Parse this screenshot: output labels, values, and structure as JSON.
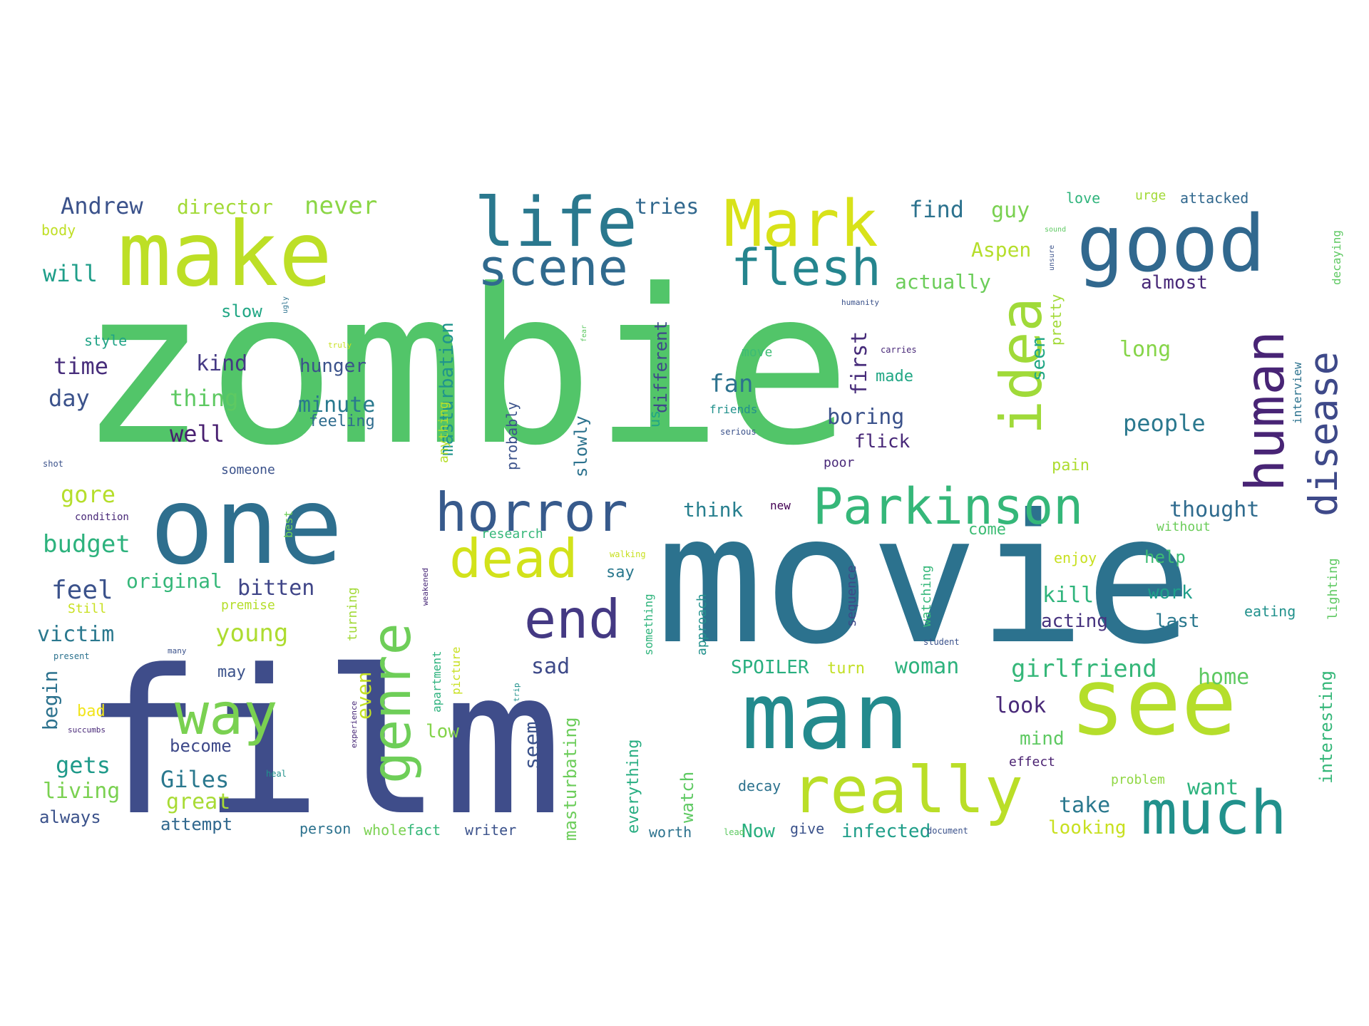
{
  "words": [
    {
      "text": "zombie",
      "color": "#52c569"
    },
    {
      "text": "movie",
      "color": "#2c728e"
    },
    {
      "text": "film",
      "color": "#3f4d8a"
    },
    {
      "text": "one",
      "color": "#2e6f8e"
    },
    {
      "text": "make",
      "color": "#bddf26"
    },
    {
      "text": "man",
      "color": "#238a8d"
    },
    {
      "text": "see",
      "color": "#b5de2b"
    },
    {
      "text": "good",
      "color": "#31688e"
    },
    {
      "text": "life",
      "color": "#2a788e"
    },
    {
      "text": "Mark",
      "color": "#d8e219"
    },
    {
      "text": "really",
      "color": "#bade28"
    },
    {
      "text": "horror",
      "color": "#375a8c"
    },
    {
      "text": "Parkinson",
      "color": "#35b779"
    },
    {
      "text": "scene",
      "color": "#306a8e"
    },
    {
      "text": "flesh",
      "color": "#25858e"
    },
    {
      "text": "much",
      "color": "#21918c"
    },
    {
      "text": "way",
      "color": "#7ad151"
    },
    {
      "text": "dead",
      "color": "#d2e21b"
    },
    {
      "text": "end",
      "color": "#443983"
    },
    {
      "text": "genre",
      "color": "#6ece58"
    },
    {
      "text": "idea",
      "color": "#a0da39"
    },
    {
      "text": "human",
      "color": "#482475"
    },
    {
      "text": "disease",
      "color": "#3e4989"
    },
    {
      "text": "Andrew",
      "color": "#3b528b"
    },
    {
      "text": "director",
      "color": "#a2da37"
    },
    {
      "text": "never",
      "color": "#8bd646"
    },
    {
      "text": "tries",
      "color": "#31688e"
    },
    {
      "text": "find",
      "color": "#2c728e"
    },
    {
      "text": "guy",
      "color": "#7ad151"
    },
    {
      "text": "love",
      "color": "#2fb47c"
    },
    {
      "text": "urge",
      "color": "#a2da37"
    },
    {
      "text": "attacked",
      "color": "#31688e"
    },
    {
      "text": "body",
      "color": "#c0df25"
    },
    {
      "text": "will",
      "color": "#1f9e89"
    },
    {
      "text": "slow",
      "color": "#22a785"
    },
    {
      "text": "style",
      "color": "#20a386"
    },
    {
      "text": "time",
      "color": "#472d7b"
    },
    {
      "text": "kind",
      "color": "#443983"
    },
    {
      "text": "hunger",
      "color": "#3b528b"
    },
    {
      "text": "day",
      "color": "#3b528b"
    },
    {
      "text": "thing",
      "color": "#5ec962"
    },
    {
      "text": "minute",
      "color": "#29798e"
    },
    {
      "text": "feeling",
      "color": "#2f6c8e"
    },
    {
      "text": "well",
      "color": "#481f70"
    },
    {
      "text": "gore",
      "color": "#b5de2b"
    },
    {
      "text": "budget",
      "color": "#2db27d"
    },
    {
      "text": "feel",
      "color": "#3b528b"
    },
    {
      "text": "original",
      "color": "#35b779"
    },
    {
      "text": "bitten",
      "color": "#404688"
    },
    {
      "text": "victim",
      "color": "#2a788e"
    },
    {
      "text": "young",
      "color": "#addc30"
    },
    {
      "text": "begin",
      "color": "#2c728e"
    },
    {
      "text": "may",
      "color": "#3b528b"
    },
    {
      "text": "bad",
      "color": "#f1e51d"
    },
    {
      "text": "become",
      "color": "#3e4989"
    },
    {
      "text": "gets",
      "color": "#1f9a8a"
    },
    {
      "text": "Giles",
      "color": "#2a788e"
    },
    {
      "text": "living",
      "color": "#7ad151"
    },
    {
      "text": "great",
      "color": "#a8db34"
    },
    {
      "text": "always",
      "color": "#3b528b"
    },
    {
      "text": "attempt",
      "color": "#31688e"
    },
    {
      "text": "masturbation",
      "color": "#1f948c"
    },
    {
      "text": "actually",
      "color": "#6ccd5a"
    },
    {
      "text": "Aspen",
      "color": "#b5de2b"
    },
    {
      "text": "almost",
      "color": "#482878"
    },
    {
      "text": "long",
      "color": "#86d549"
    },
    {
      "text": "people",
      "color": "#2a788e"
    },
    {
      "text": "thought",
      "color": "#2f6b8e"
    },
    {
      "text": "fan",
      "color": "#2c728e"
    },
    {
      "text": "boring",
      "color": "#3b528b"
    },
    {
      "text": "flick",
      "color": "#482878"
    },
    {
      "text": "made",
      "color": "#22a785"
    },
    {
      "text": "first",
      "color": "#472c7a"
    },
    {
      "text": "pretty",
      "color": "#a2da37"
    },
    {
      "text": "seen",
      "color": "#21a685"
    },
    {
      "text": "think",
      "color": "#277f8e"
    },
    {
      "text": "SPOILER",
      "color": "#29af7f"
    },
    {
      "text": "woman",
      "color": "#2db27d"
    },
    {
      "text": "girlfriend",
      "color": "#35b779"
    },
    {
      "text": "home",
      "color": "#5ec962"
    },
    {
      "text": "look",
      "color": "#482878"
    },
    {
      "text": "kill",
      "color": "#2fb47c"
    },
    {
      "text": "work",
      "color": "#1f9e89"
    },
    {
      "text": "last",
      "color": "#2a788e"
    },
    {
      "text": "acting",
      "color": "#46327e"
    },
    {
      "text": "help",
      "color": "#3dbc74"
    },
    {
      "text": "take",
      "color": "#2a788e"
    },
    {
      "text": "want",
      "color": "#2db27d"
    },
    {
      "text": "looking",
      "color": "#c8e020"
    },
    {
      "text": "Now",
      "color": "#29af7f"
    },
    {
      "text": "infected",
      "color": "#1f9e89"
    },
    {
      "text": "sad",
      "color": "#3e4a89"
    },
    {
      "text": "seem",
      "color": "#3b528b"
    },
    {
      "text": "say",
      "color": "#2a788e"
    },
    {
      "text": "low",
      "color": "#84d44b"
    },
    {
      "text": "even",
      "color": "#c2df23"
    },
    {
      "text": "slowly",
      "color": "#2c728e"
    },
    {
      "text": "probably",
      "color": "#3b528b"
    },
    {
      "text": "different",
      "color": "#3e4989"
    },
    {
      "text": "us",
      "color": "#20a486"
    },
    {
      "text": "anything",
      "color": "#b5de2b"
    },
    {
      "text": "mind",
      "color": "#5ec962"
    },
    {
      "text": "effect",
      "color": "#481f70"
    },
    {
      "text": "problem",
      "color": "#90d743"
    },
    {
      "text": "decay",
      "color": "#2c728e"
    },
    {
      "text": "give",
      "color": "#3b528b"
    },
    {
      "text": "worth",
      "color": "#2c728e"
    },
    {
      "text": "everything",
      "color": "#27ad81"
    },
    {
      "text": "writer",
      "color": "#3b528b"
    },
    {
      "text": "fact",
      "color": "#35b779"
    },
    {
      "text": "whole",
      "color": "#7ad151"
    },
    {
      "text": "person",
      "color": "#2c728e"
    },
    {
      "text": "masturbating",
      "color": "#6ccd5a"
    },
    {
      "text": "watch",
      "color": "#5ec962"
    },
    {
      "text": "come",
      "color": "#3dbc74"
    },
    {
      "text": "enjoy",
      "color": "#c8e020"
    },
    {
      "text": "eating",
      "color": "#21918c"
    },
    {
      "text": "interesting",
      "color": "#35b779"
    },
    {
      "text": "lighting",
      "color": "#5ec962"
    },
    {
      "text": "decaying",
      "color": "#5ec962"
    },
    {
      "text": "interview",
      "color": "#2c728e"
    },
    {
      "text": "pain",
      "color": "#addc30"
    },
    {
      "text": "without",
      "color": "#6ccd5a"
    },
    {
      "text": "research",
      "color": "#35b779"
    },
    {
      "text": "turning",
      "color": "#a2da37"
    },
    {
      "text": "premise",
      "color": "#b5de2b"
    },
    {
      "text": "Still",
      "color": "#c8e020"
    },
    {
      "text": "turn",
      "color": "#c2df23"
    },
    {
      "text": "someone",
      "color": "#3b528b"
    },
    {
      "text": "condition",
      "color": "#482878"
    },
    {
      "text": "sequence",
      "color": "#3e4989"
    },
    {
      "text": "watching",
      "color": "#35b779"
    },
    {
      "text": "approach",
      "color": "#21918c"
    },
    {
      "text": "something",
      "color": "#2fb47c"
    },
    {
      "text": "picture",
      "color": "#c8e020"
    },
    {
      "text": "apartment",
      "color": "#2db27d"
    },
    {
      "text": "poor",
      "color": "#482878"
    },
    {
      "text": "new",
      "color": "#440154"
    },
    {
      "text": "friends",
      "color": "#21918c"
    },
    {
      "text": "serious",
      "color": "#3b528b"
    },
    {
      "text": "carries",
      "color": "#482878"
    },
    {
      "text": "move",
      "color": "#3dbc74"
    },
    {
      "text": "humanity",
      "color": "#3b528b"
    },
    {
      "text": "sound",
      "color": "#5ec962"
    },
    {
      "text": "unsure",
      "color": "#3b528b"
    },
    {
      "text": "truly",
      "color": "#c8e020"
    },
    {
      "text": "fear",
      "color": "#5ec962"
    },
    {
      "text": "best",
      "color": "#6ece58"
    },
    {
      "text": "shot",
      "color": "#3b528b"
    },
    {
      "text": "present",
      "color": "#2c728e"
    },
    {
      "text": "succumbs",
      "color": "#482878"
    },
    {
      "text": "experience",
      "color": "#482878"
    },
    {
      "text": "heal",
      "color": "#21918c"
    },
    {
      "text": "document",
      "color": "#3b528b"
    },
    {
      "text": "lead",
      "color": "#5ec962"
    },
    {
      "text": "student",
      "color": "#3b528b"
    },
    {
      "text": "walking",
      "color": "#c8e020"
    },
    {
      "text": "weakened",
      "color": "#482878"
    },
    {
      "text": "many",
      "color": "#3b528b"
    },
    {
      "text": "trip",
      "color": "#21918c"
    },
    {
      "text": "ugly",
      "color": "#2c728e"
    }
  ]
}
